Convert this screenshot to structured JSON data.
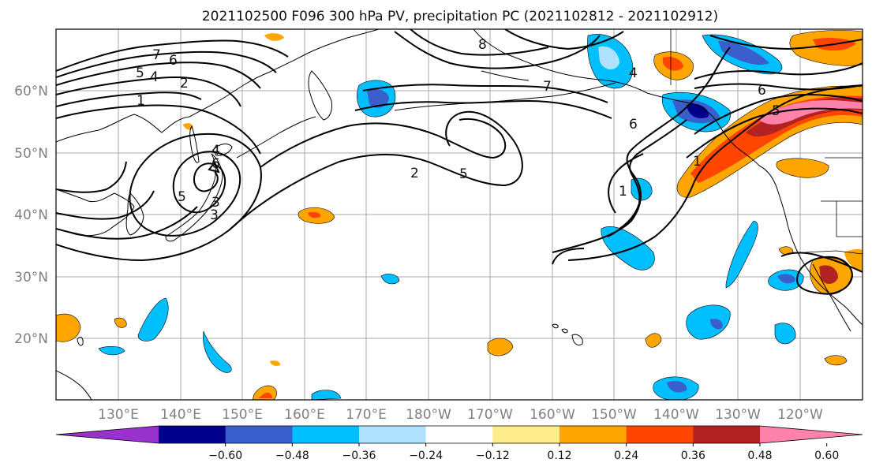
{
  "title": "2021102500 F096 300 hPa PV, precipitation PC (2021102812 - 2021102912)",
  "lat_ticks": [
    "60°N",
    "50°N",
    "40°N",
    "30°N",
    "20°N"
  ],
  "lon_ticks": [
    "130°E",
    "140°E",
    "150°E",
    "160°E",
    "170°E",
    "180°W",
    "170°W",
    "160°W",
    "150°W",
    "140°W",
    "130°W",
    "120°W"
  ],
  "colorbar": {
    "tick_labels": [
      "−0.60",
      "−0.48",
      "−0.36",
      "−0.24",
      "−0.12",
      "0.12",
      "0.24",
      "0.36",
      "0.48",
      "0.60"
    ],
    "colors": [
      "#9932cc",
      "#00008b",
      "#3a5fcd",
      "#00bfff",
      "#b0e2ff",
      "#ffffff",
      "#ffec8b",
      "#ffa500",
      "#ff4500",
      "#b22222",
      "#ff82ab"
    ]
  },
  "contour_labels": [
    {
      "text": "7"
    },
    {
      "text": "6"
    },
    {
      "text": "5"
    },
    {
      "text": "4"
    },
    {
      "text": "2"
    },
    {
      "text": "1"
    },
    {
      "text": "4"
    },
    {
      "text": "6"
    },
    {
      "text": "5"
    },
    {
      "text": "3"
    },
    {
      "text": "3"
    },
    {
      "text": "8"
    },
    {
      "text": "2"
    },
    {
      "text": "5"
    },
    {
      "text": "7"
    },
    {
      "text": "6"
    },
    {
      "text": "1"
    },
    {
      "text": "4"
    },
    {
      "text": "6"
    },
    {
      "text": "5"
    },
    {
      "text": "1"
    }
  ]
}
